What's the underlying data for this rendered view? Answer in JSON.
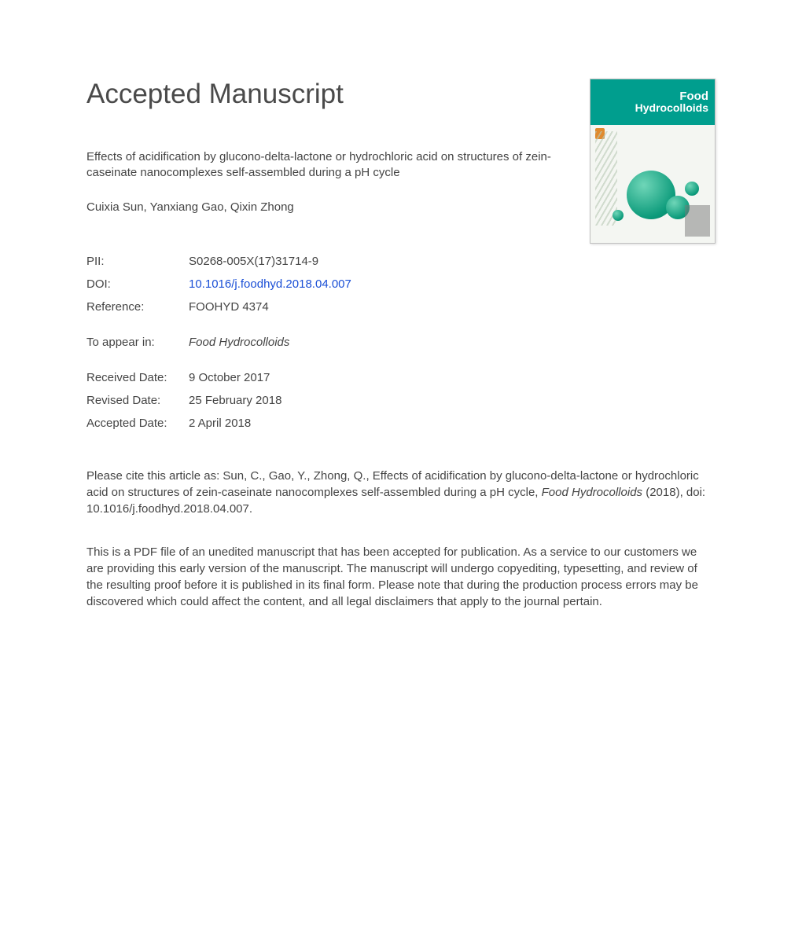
{
  "heading": "Accepted Manuscript",
  "cover": {
    "line1": "Food",
    "line2": "Hydrocolloids",
    "background_color": "#009e8e",
    "text_color": "#ffffff"
  },
  "article_title": "Effects of acidification by glucono-delta-lactone or hydrochloric acid on structures of zein-caseinate nanocomplexes self-assembled during a pH cycle",
  "authors": "Cuixia Sun, Yanxiang Gao, Qixin Zhong",
  "meta": {
    "pii_label": "PII:",
    "pii_value": "S0268-005X(17)31714-9",
    "doi_label": "DOI:",
    "doi_value": "10.1016/j.foodhyd.2018.04.007",
    "reference_label": "Reference:",
    "reference_value": "FOOHYD 4374",
    "appear_label": "To appear in:",
    "appear_value": "Food Hydrocolloids",
    "received_label": "Received Date:",
    "received_value": "9 October 2017",
    "revised_label": "Revised Date:",
    "revised_value": "25 February 2018",
    "accepted_label": "Accepted Date:",
    "accepted_value": "2 April 2018"
  },
  "citation": {
    "prefix": "Please cite this article as: Sun, C., Gao, Y., Zhong, Q., Effects of acidification by glucono-delta-lactone or hydrochloric acid on structures of zein-caseinate nanocomplexes self-assembled during a pH cycle, ",
    "journal": "Food Hydrocolloids",
    "suffix": " (2018), doi: 10.1016/j.foodhyd.2018.04.007."
  },
  "disclaimer": "This is a PDF file of an unedited manuscript that has been accepted for publication. As a service to our customers we are providing this early version of the manuscript. The manuscript will undergo copyediting, typesetting, and review of the resulting proof before it is published in its final form. Please note that during the production process errors may be discovered which could affect the content, and all legal disclaimers that apply to the journal pertain.",
  "colors": {
    "text": "#3a3a3a",
    "link": "#1a4fd6",
    "background": "#ffffff"
  }
}
